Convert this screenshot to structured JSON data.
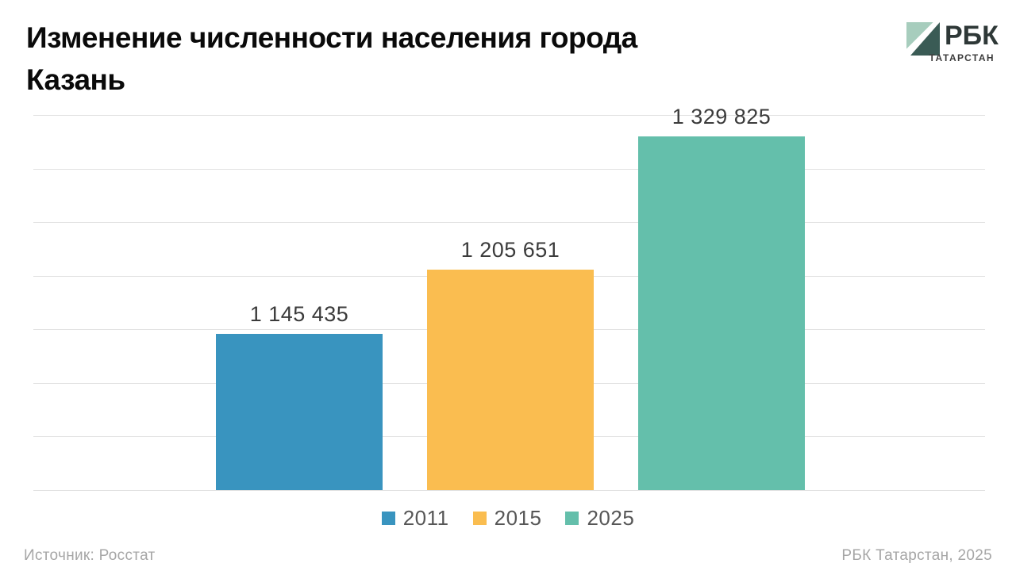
{
  "header": {
    "title_line1": "Изменение численности населения города",
    "title_line2": "Казань"
  },
  "logo": {
    "brand": "РБК",
    "region": "ТАТАРСТАН",
    "light_color": "#A7CDBD",
    "dark_color": "#3A5B55"
  },
  "chart_data": {
    "type": "bar",
    "title": "Изменение численности населения города Казань",
    "categories": [
      "2011",
      "2015",
      "2025"
    ],
    "values": [
      1145435,
      1205651,
      1329825
    ],
    "value_labels": [
      "1 145 435",
      "1 205 651",
      "1 329 825"
    ],
    "bar_colors": [
      "#3994BF",
      "#FABD50",
      "#64BFAB"
    ],
    "ylim": [
      1000000,
      1350000
    ],
    "gridline_count": 8,
    "grid": true,
    "legend_position": "bottom",
    "xlabel": "",
    "ylabel": ""
  },
  "legend": {
    "items": [
      {
        "label": "2011",
        "color": "#3994BF"
      },
      {
        "label": "2015",
        "color": "#FABD50"
      },
      {
        "label": "2025",
        "color": "#64BFAB"
      }
    ]
  },
  "footer": {
    "source": "Источник: Росстат",
    "credit": "РБК Татарстан, 2025"
  },
  "colors": {
    "grid": "#E2E2E2"
  }
}
